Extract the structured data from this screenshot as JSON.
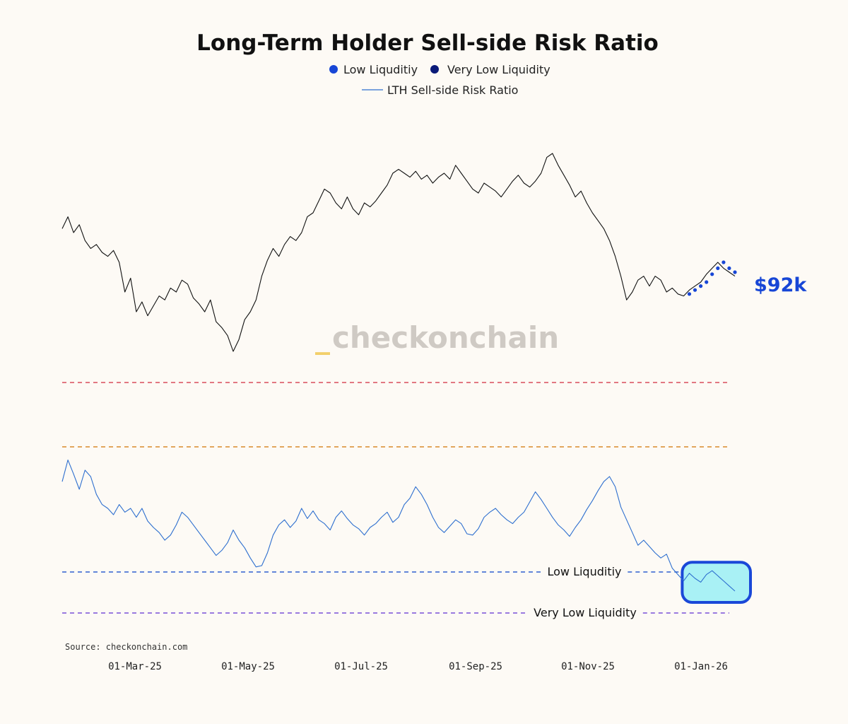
{
  "chart_data": {
    "type": "line",
    "title": "Long-Term Holder Sell-side Risk Ratio",
    "source": "Source: checkonchain.com",
    "watermark": "checkonchain",
    "watermark_prefix": "_",
    "legend": {
      "placement": "top-center",
      "entries": [
        {
          "name": "Low Liquditiy",
          "marker": "dot",
          "color": "#1746d6"
        },
        {
          "name": "Very Low Liquidity",
          "marker": "dot",
          "color": "#0a1a78"
        },
        {
          "name": "LTH Sell-side Risk Ratio",
          "marker": "line",
          "color": "#2e6fcf"
        }
      ]
    },
    "x_ticks": [
      "01-Mar-25",
      "01-May-25",
      "01-Jul-25",
      "01-Sep-25",
      "01-Nov-25",
      "01-Jan-26"
    ],
    "price_series": {
      "label": "$92k",
      "color": "#111111",
      "highlight_color": "#1746d6",
      "values": [
        0.72,
        0.78,
        0.7,
        0.74,
        0.66,
        0.62,
        0.64,
        0.6,
        0.58,
        0.61,
        0.55,
        0.4,
        0.47,
        0.3,
        0.35,
        0.28,
        0.33,
        0.38,
        0.36,
        0.42,
        0.4,
        0.46,
        0.44,
        0.37,
        0.34,
        0.3,
        0.36,
        0.25,
        0.22,
        0.18,
        0.1,
        0.16,
        0.26,
        0.3,
        0.36,
        0.48,
        0.56,
        0.62,
        0.58,
        0.64,
        0.68,
        0.66,
        0.7,
        0.78,
        0.8,
        0.86,
        0.92,
        0.9,
        0.85,
        0.82,
        0.88,
        0.82,
        0.79,
        0.85,
        0.83,
        0.86,
        0.9,
        0.94,
        1.0,
        1.02,
        1.0,
        0.98,
        1.01,
        0.97,
        0.99,
        0.95,
        0.98,
        1.0,
        0.97,
        1.04,
        1.0,
        0.96,
        0.92,
        0.9,
        0.95,
        0.93,
        0.91,
        0.88,
        0.92,
        0.96,
        0.99,
        0.95,
        0.93,
        0.96,
        1.0,
        1.08,
        1.1,
        1.04,
        0.99,
        0.94,
        0.88,
        0.91,
        0.85,
        0.8,
        0.76,
        0.72,
        0.66,
        0.58,
        0.48,
        0.36,
        0.4,
        0.46,
        0.48,
        0.43,
        0.48,
        0.46,
        0.4,
        0.42,
        0.39,
        0.38,
        0.41,
        0.43,
        0.45,
        0.49,
        0.52,
        0.55,
        0.52,
        0.5,
        0.48
      ],
      "low_liquidity_points": [
        0.39,
        0.41,
        0.43,
        0.45,
        0.49,
        0.52,
        0.55,
        0.52,
        0.5
      ]
    },
    "ratio_series": {
      "name": "LTH Sell-side Risk Ratio",
      "color": "#2e6fcf",
      "values": [
        0.76,
        0.93,
        0.82,
        0.7,
        0.85,
        0.8,
        0.66,
        0.58,
        0.55,
        0.5,
        0.58,
        0.52,
        0.55,
        0.48,
        0.55,
        0.45,
        0.4,
        0.36,
        0.3,
        0.34,
        0.42,
        0.52,
        0.48,
        0.42,
        0.36,
        0.3,
        0.24,
        0.18,
        0.22,
        0.28,
        0.38,
        0.3,
        0.24,
        0.16,
        0.09,
        0.1,
        0.2,
        0.34,
        0.42,
        0.46,
        0.4,
        0.45,
        0.55,
        0.47,
        0.53,
        0.46,
        0.43,
        0.38,
        0.48,
        0.53,
        0.47,
        0.42,
        0.39,
        0.34,
        0.4,
        0.43,
        0.48,
        0.52,
        0.44,
        0.48,
        0.58,
        0.63,
        0.72,
        0.66,
        0.58,
        0.48,
        0.4,
        0.36,
        0.41,
        0.46,
        0.43,
        0.35,
        0.34,
        0.39,
        0.48,
        0.52,
        0.55,
        0.5,
        0.46,
        0.43,
        0.48,
        0.52,
        0.6,
        0.68,
        0.62,
        0.55,
        0.48,
        0.42,
        0.38,
        0.33,
        0.4,
        0.46,
        0.54,
        0.61,
        0.69,
        0.76,
        0.8,
        0.72,
        0.56,
        0.46,
        0.36,
        0.26,
        0.3,
        0.25,
        0.2,
        0.16,
        0.19,
        0.08,
        0.03,
        -0.02,
        0.04,
        0.0,
        -0.03,
        0.03,
        0.06,
        0.02,
        -0.02,
        -0.06,
        -0.1
      ],
      "highlight_start_index": 109
    },
    "levels": [
      {
        "name": "red-level",
        "color": "#d94c5c",
        "label": ""
      },
      {
        "name": "orange-level",
        "color": "#d98a2b",
        "label": ""
      },
      {
        "name": "low-liquidity-level",
        "color": "#2f5fd0",
        "label": "Low Liquditiy"
      },
      {
        "name": "very-low-liquidity-level",
        "color": "#7a4fd8",
        "label": "Very Low Liquidity"
      }
    ],
    "highlight_box": {
      "fill": "#a9f1f5",
      "stroke": "#1a48d8"
    },
    "grid": false
  }
}
